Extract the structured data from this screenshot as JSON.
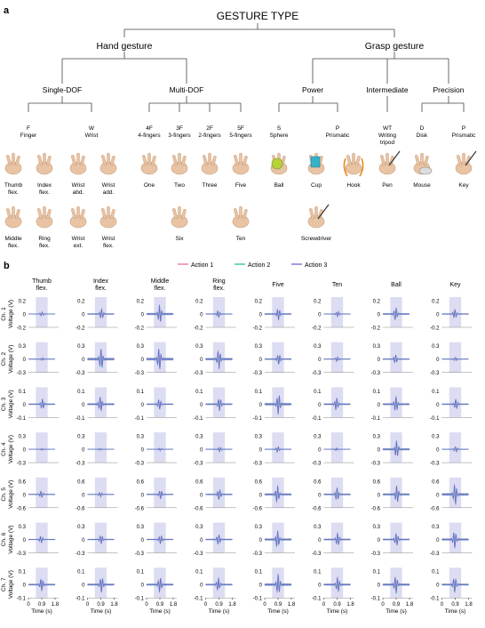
{
  "panel_labels": {
    "a": "a",
    "b": "b"
  },
  "taxonomy": {
    "root": "GESTURE TYPE",
    "hand": "Hand gesture",
    "grasp": "Grasp gesture",
    "single": "Single-DOF",
    "multi": "Multi-DOF",
    "power": "Power",
    "intermediate": "Intermediate",
    "precision": "Precision",
    "leaves": [
      {
        "code": "F",
        "name": "Finger"
      },
      {
        "code": "W",
        "name": "Wrist"
      },
      {
        "code": "4F",
        "name": "4-fingers"
      },
      {
        "code": "3F",
        "name": "3-fingers"
      },
      {
        "code": "2F",
        "name": "2-fingers"
      },
      {
        "code": "5F",
        "name": "5-fingers"
      },
      {
        "code": "S",
        "name": "Sphere"
      },
      {
        "code": "P",
        "name": "Prismatic"
      },
      {
        "code": "WT",
        "name": "Writing tripod"
      },
      {
        "code": "D",
        "name": "Disk"
      },
      {
        "code": "P",
        "name": "Prismatic"
      }
    ],
    "gestures": [
      "Thumb flex.",
      "Index flex.",
      "Wrist abd.",
      "Wrist add.",
      "Middle flex.",
      "Ring flex.",
      "Wrist ext.",
      "Wrist flex.",
      "One",
      "Two",
      "Three",
      "Five",
      "Six",
      "Ten",
      "Ball",
      "Cup",
      "Hook",
      "Pen",
      "Mouse",
      "Key",
      "Screwdriver"
    ]
  },
  "chart_data": {
    "type": "line",
    "legend": [
      "Action 1",
      "Action 2",
      "Action 3"
    ],
    "legend_placement": "top-center",
    "colors": {
      "Action 1": "#e8718a",
      "Action 2": "#2bbf9c",
      "Action 3": "#6a6ad6",
      "shade": "#dcdcf2"
    },
    "columns": [
      "Thumb flex.",
      "Index flex.",
      "Middle flex.",
      "Ring flex.",
      "Five",
      "Ten",
      "Ball",
      "Key"
    ],
    "rows": [
      {
        "channel": "Ch. 1",
        "ylabel": "Voltage (V)",
        "ylim": [
          -0.2,
          0.2
        ]
      },
      {
        "channel": "Ch. 2",
        "ylabel": "Voltage (V)",
        "ylim": [
          -0.3,
          0.3
        ]
      },
      {
        "channel": "Ch. 3",
        "ylabel": "Voltage (V)",
        "ylim": [
          -0.1,
          0.1
        ]
      },
      {
        "channel": "Ch. 4",
        "ylabel": "Voltage (V)",
        "ylim": [
          -0.3,
          0.3
        ]
      },
      {
        "channel": "Ch. 5",
        "ylabel": "Voltage (V)",
        "ylim": [
          -0.6,
          0.6
        ]
      },
      {
        "channel": "Ch. 6",
        "ylabel": "Voltage (V)",
        "ylim": [
          -0.3,
          0.3
        ]
      },
      {
        "channel": "Ch. 7",
        "ylabel": "Voltage (V)",
        "ylim": [
          -0.1,
          0.1
        ]
      }
    ],
    "xlabel": "Time (s)",
    "xticks": [
      "0",
      "0.9",
      "1.8"
    ],
    "xlim": [
      0,
      1.8
    ],
    "shaded_interval": [
      0.5,
      1.3
    ],
    "peak_amplitudes": [
      [
        0.03,
        0.08,
        0.14,
        0.05,
        0.09,
        0.04,
        0.1,
        0.07
      ],
      [
        0.03,
        0.25,
        0.26,
        0.22,
        0.12,
        0.05,
        0.1,
        0.04
      ],
      [
        0.04,
        0.06,
        0.04,
        0.05,
        0.08,
        0.05,
        0.06,
        0.04
      ],
      [
        0.02,
        0.02,
        0.03,
        0.05,
        0.06,
        0.03,
        0.2,
        0.06
      ],
      [
        0.15,
        0.1,
        0.2,
        0.25,
        0.4,
        0.3,
        0.4,
        0.5
      ],
      [
        0.08,
        0.1,
        0.1,
        0.12,
        0.2,
        0.15,
        0.15,
        0.2
      ],
      [
        0.05,
        0.06,
        0.06,
        0.05,
        0.08,
        0.06,
        0.07,
        0.06
      ]
    ]
  }
}
